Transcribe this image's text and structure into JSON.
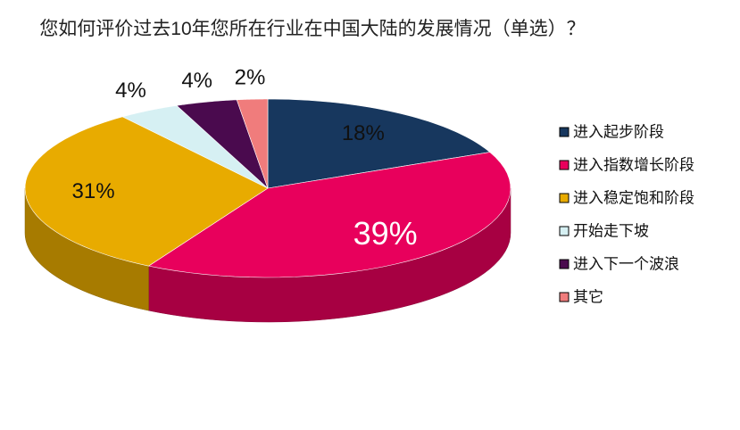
{
  "chart_data": {
    "type": "pie3d",
    "title": "您如何评价过去10年您所在行业在中国大陆的发展情况（单选）？",
    "categories": [
      "进入起步阶段",
      "进入指数增长阶段",
      "进入稳定饱和阶段",
      "开始走下坡",
      "进入下一个波浪",
      "其它"
    ],
    "values": [
      18,
      39,
      31,
      4,
      4,
      2
    ],
    "value_labels": [
      "18%",
      "39%",
      "31%",
      "4%",
      "4%",
      "2%"
    ],
    "colors": [
      "#17375e",
      "#e8005c",
      "#e8ab00",
      "#d6f0f3",
      "#4a0a4e",
      "#f07c7c"
    ],
    "legend": "right"
  }
}
